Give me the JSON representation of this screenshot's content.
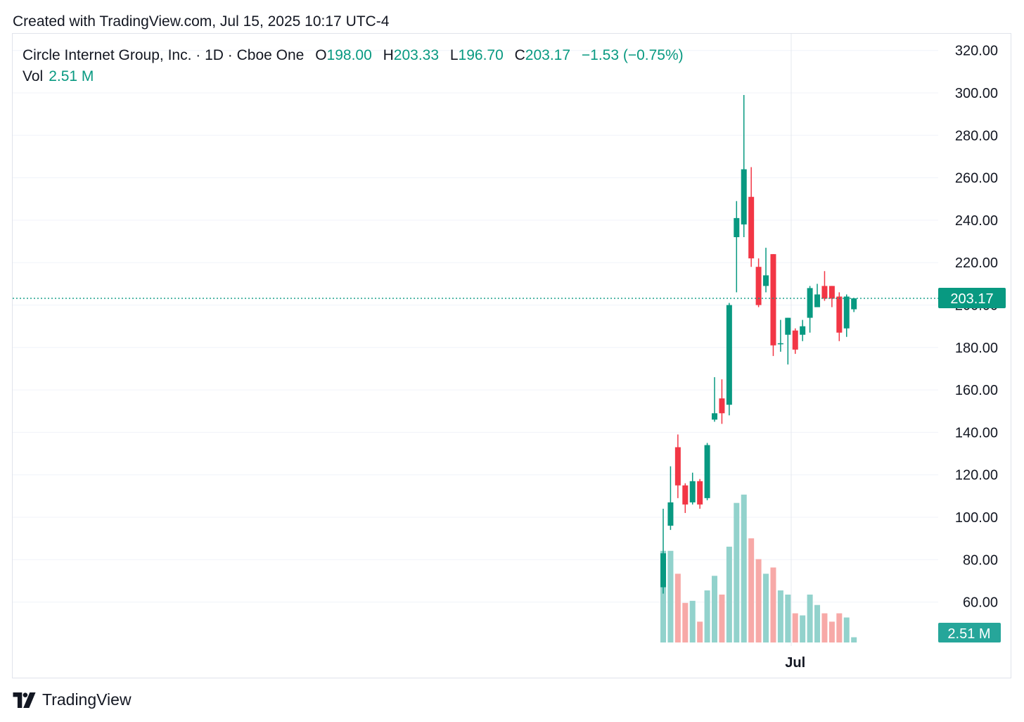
{
  "header": {
    "created": "Created with TradingView.com, Jul 15, 2025 10:17 UTC-4"
  },
  "legend": {
    "symbol": "Circle Internet Group, Inc. · 1D · Cboe One",
    "open_label": "O",
    "open_value": "198.00",
    "high_label": "H",
    "high_value": "203.33",
    "low_label": "L",
    "low_value": "196.70",
    "close_label": "C",
    "close_value": "203.17",
    "change": "−1.53 (−0.75%)",
    "vol_label": "Vol",
    "vol_value": "2.51 M"
  },
  "colors": {
    "up": "#089981",
    "down": "#f23645",
    "vol_up": "#92d2cc",
    "vol_down": "#f7a9a7",
    "grid": "#f0f3fa",
    "price_line": "#089981"
  },
  "footer": {
    "brand": "TradingView"
  },
  "chart_data": {
    "type": "candlestick",
    "title": "Circle Internet Group, Inc. · 1D · Cboe One",
    "y_axis": {
      "ticks": [
        "320.00",
        "300.00",
        "280.00",
        "260.00",
        "240.00",
        "220.00",
        "200.00",
        "180.00",
        "160.00",
        "140.00",
        "120.00",
        "100.00",
        "80.00",
        "60.00"
      ],
      "range": [
        52,
        323
      ]
    },
    "x_axis": {
      "labels": [
        {
          "text": "Jul",
          "index": 18
        }
      ]
    },
    "last_price": {
      "value": 203.17,
      "label": "203.17"
    },
    "last_volume": {
      "label": "2.51 M"
    },
    "candles": [
      {
        "o": 67,
        "h": 104,
        "l": 64,
        "c": 83,
        "v": 44
      },
      {
        "o": 96,
        "h": 124,
        "l": 94,
        "c": 107,
        "v": 44
      },
      {
        "o": 133,
        "h": 139,
        "l": 109,
        "c": 115,
        "v": 33
      },
      {
        "o": 115,
        "h": 116,
        "l": 102,
        "c": 106,
        "v": 19
      },
      {
        "o": 107,
        "h": 121,
        "l": 106,
        "c": 117,
        "v": 20
      },
      {
        "o": 117,
        "h": 118,
        "l": 104,
        "c": 106,
        "v": 10
      },
      {
        "o": 109,
        "h": 135,
        "l": 108,
        "c": 134,
        "v": 25
      },
      {
        "o": 146,
        "h": 166,
        "l": 145,
        "c": 149,
        "v": 32
      },
      {
        "o": 156,
        "h": 165,
        "l": 144,
        "c": 149,
        "v": 23
      },
      {
        "o": 153,
        "h": 201,
        "l": 148,
        "c": 200,
        "v": 46
      },
      {
        "o": 232,
        "h": 249,
        "l": 206,
        "c": 241,
        "v": 67
      },
      {
        "o": 238,
        "h": 299,
        "l": 232,
        "c": 264,
        "v": 71
      },
      {
        "o": 251,
        "h": 265,
        "l": 218,
        "c": 222,
        "v": 50
      },
      {
        "o": 218,
        "h": 222,
        "l": 199,
        "c": 200,
        "v": 40
      },
      {
        "o": 209,
        "h": 227,
        "l": 206,
        "c": 214,
        "v": 33
      },
      {
        "o": 224,
        "h": 224,
        "l": 176,
        "c": 181,
        "v": 36
      },
      {
        "o": 182,
        "h": 193,
        "l": 178,
        "c": 182,
        "v": 25
      },
      {
        "o": 186,
        "h": 194,
        "l": 172,
        "c": 194,
        "v": 23
      },
      {
        "o": 188,
        "h": 189,
        "l": 177,
        "c": 179,
        "v": 14
      },
      {
        "o": 186,
        "h": 193,
        "l": 183,
        "c": 190,
        "v": 13
      },
      {
        "o": 194,
        "h": 209,
        "l": 187,
        "c": 208,
        "v": 23
      },
      {
        "o": 199,
        "h": 210,
        "l": 199,
        "c": 205,
        "v": 18
      },
      {
        "o": 209,
        "h": 216,
        "l": 202,
        "c": 203,
        "v": 14
      },
      {
        "o": 209,
        "h": 209,
        "l": 199,
        "c": 203,
        "v": 10
      },
      {
        "o": 204,
        "h": 206,
        "l": 183,
        "c": 187,
        "v": 14
      },
      {
        "o": 189,
        "h": 205,
        "l": 185,
        "c": 204,
        "v": 12
      },
      {
        "o": 198,
        "h": 203.33,
        "l": 196.7,
        "c": 203.17,
        "v": 2.51
      }
    ]
  }
}
